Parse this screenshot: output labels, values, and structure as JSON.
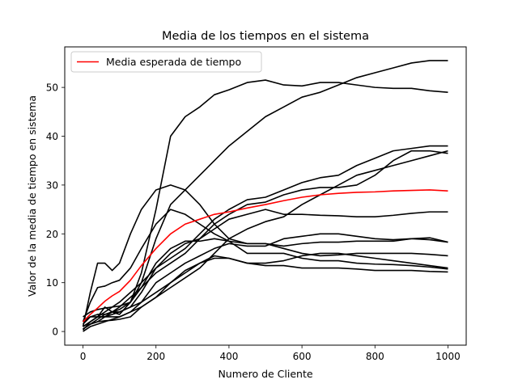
{
  "chart_data": {
    "type": "line",
    "title": "Media de los tiempos en el sistema",
    "xlabel": "Numero de Cliente",
    "ylabel": "Valor de la media de tiempo en sistema",
    "xlim": [
      -50,
      1050
    ],
    "ylim": [
      -2.8,
      58.3
    ],
    "xticks": [
      0,
      200,
      400,
      600,
      800,
      1000
    ],
    "yticks": [
      0,
      10,
      20,
      30,
      40,
      50
    ],
    "grid": false,
    "legend": {
      "position": "upper-left",
      "entries": [
        "Media esperada de tiempo"
      ]
    },
    "colors": {
      "expected": "#ff0000",
      "simulation": "#000000"
    },
    "series": [
      {
        "name": "Media esperada de tiempo",
        "color": "#ff0000",
        "x": [
          0,
          20,
          40,
          60,
          80,
          100,
          130,
          160,
          200,
          240,
          280,
          320,
          360,
          400,
          450,
          500,
          550,
          600,
          650,
          700,
          750,
          800,
          850,
          900,
          950,
          1000
        ],
        "y": [
          2,
          3.5,
          4.8,
          6.2,
          7.3,
          8.2,
          10.5,
          13.5,
          17,
          20,
          22,
          23,
          24,
          24.5,
          25.3,
          26,
          26.8,
          27.5,
          28,
          28.3,
          28.5,
          28.6,
          28.8,
          28.9,
          29,
          28.8
        ]
      },
      {
        "color": "#000000",
        "x": [
          0,
          20,
          40,
          60,
          80,
          100,
          130,
          160,
          200,
          240,
          280,
          320,
          360,
          400,
          450,
          500,
          550,
          600,
          650,
          700,
          750,
          800,
          850,
          900,
          950,
          1000
        ],
        "y": [
          0.3,
          2,
          3,
          5,
          4,
          3.5,
          6,
          12,
          25,
          40,
          44,
          46,
          48.5,
          49.5,
          51,
          51.5,
          50.5,
          50.3,
          51,
          51,
          50.5,
          50,
          49.8,
          49.8,
          49.3,
          49
        ]
      },
      {
        "color": "#000000",
        "x": [
          0,
          20,
          40,
          60,
          80,
          100,
          130,
          160,
          200,
          240,
          280,
          320,
          360,
          400,
          450,
          500,
          550,
          600,
          650,
          700,
          750,
          800,
          850,
          900,
          950,
          1000
        ],
        "y": [
          0.5,
          1.5,
          2.5,
          3.5,
          4,
          4.5,
          6,
          10,
          19,
          26,
          29,
          32,
          35,
          38,
          41,
          44,
          46,
          48,
          49,
          50.5,
          52,
          53,
          54,
          55,
          55.5,
          55.5
        ]
      },
      {
        "color": "#000000",
        "x": [
          0,
          20,
          40,
          60,
          80,
          100,
          130,
          160,
          200,
          240,
          280,
          320,
          360,
          400,
          450,
          500,
          550,
          600,
          650,
          700,
          750,
          800,
          850,
          900,
          950,
          1000
        ],
        "y": [
          1,
          8,
          14,
          14,
          12.5,
          14,
          20,
          25,
          29,
          30,
          29,
          26,
          22,
          19,
          18,
          18,
          17,
          16,
          15.5,
          15.7,
          16,
          16,
          16,
          16,
          15.8,
          15.5
        ]
      },
      {
        "color": "#000000",
        "x": [
          0,
          20,
          40,
          60,
          80,
          100,
          130,
          160,
          200,
          240,
          280,
          320,
          360,
          400,
          450,
          500,
          550,
          600,
          650,
          700,
          750,
          800,
          850,
          900,
          950,
          1000
        ],
        "y": [
          2,
          6,
          9,
          9.3,
          10,
          10.5,
          13,
          17,
          22,
          25,
          24,
          22,
          20,
          18.5,
          16,
          16,
          16,
          15,
          14.5,
          14.5,
          14,
          13.8,
          13.7,
          13.5,
          13.2,
          12.8
        ]
      },
      {
        "color": "#000000",
        "x": [
          0,
          20,
          40,
          60,
          80,
          100,
          130,
          160,
          200,
          240,
          280,
          320,
          360,
          400,
          450,
          500,
          550,
          600,
          650,
          700,
          750,
          800,
          850,
          900,
          950,
          1000
        ],
        "y": [
          2,
          3,
          3,
          3,
          3,
          3,
          4,
          6,
          10,
          12,
          14,
          15.5,
          17,
          18,
          17.5,
          17.5,
          19,
          19.5,
          20,
          20,
          19.5,
          19,
          18.8,
          19,
          18.8,
          18.3
        ]
      },
      {
        "color": "#000000",
        "x": [
          0,
          20,
          40,
          60,
          80,
          100,
          130,
          160,
          200,
          240,
          280,
          320,
          360,
          400,
          450,
          500,
          550,
          600,
          650,
          700,
          750,
          800,
          850,
          900,
          950,
          1000
        ],
        "y": [
          3,
          4,
          4.5,
          4.8,
          5,
          5.2,
          6,
          9,
          14,
          17,
          18.5,
          18.5,
          19,
          18.5,
          18,
          18,
          17.5,
          18,
          18.3,
          18.3,
          18.5,
          18.5,
          18.5,
          19,
          19.2,
          18.3
        ]
      },
      {
        "color": "#000000",
        "x": [
          0,
          20,
          40,
          60,
          80,
          100,
          130,
          160,
          200,
          240,
          280,
          320,
          360,
          400,
          450,
          500,
          550,
          600,
          650,
          700,
          750,
          800,
          850,
          900,
          950,
          1000
        ],
        "y": [
          1,
          2,
          3,
          3,
          3.5,
          4,
          5,
          8,
          13,
          16,
          18,
          19,
          21,
          23,
          24,
          25,
          24,
          24,
          23.8,
          23.7,
          23.5,
          23.5,
          23.8,
          24.2,
          24.5,
          24.5
        ]
      },
      {
        "color": "#000000",
        "x": [
          0,
          20,
          40,
          60,
          80,
          100,
          130,
          160,
          200,
          240,
          280,
          320,
          360,
          400,
          450,
          500,
          550,
          600,
          650,
          700,
          750,
          800,
          850,
          900,
          950,
          1000
        ],
        "y": [
          0.5,
          1.5,
          2,
          2.2,
          2.3,
          2.5,
          3,
          5,
          7,
          10,
          12,
          14,
          15,
          15,
          14,
          14,
          14.5,
          15.5,
          16,
          16,
          15.5,
          15,
          14.5,
          14,
          13.5,
          13
        ]
      },
      {
        "color": "#000000",
        "x": [
          0,
          20,
          40,
          60,
          80,
          100,
          130,
          160,
          200,
          240,
          280,
          320,
          360,
          400,
          450,
          500,
          550,
          600,
          650,
          700,
          750,
          800,
          850,
          900,
          950,
          1000
        ],
        "y": [
          1.5,
          3,
          3.5,
          3.5,
          4,
          4,
          5,
          6,
          8,
          10,
          12.5,
          14,
          15.5,
          15,
          14,
          13.5,
          13.5,
          13,
          13,
          13,
          12.8,
          12.5,
          12.5,
          12.5,
          12.3,
          12.2
        ]
      },
      {
        "color": "#000000",
        "x": [
          0,
          20,
          40,
          60,
          80,
          100,
          130,
          160,
          200,
          240,
          280,
          320,
          360,
          400,
          450,
          500,
          550,
          600,
          650,
          700,
          750,
          800,
          850,
          900,
          950,
          1000
        ],
        "y": [
          1,
          2,
          3,
          4,
          5,
          6,
          8,
          10,
          13,
          15,
          17,
          20,
          23,
          25,
          27,
          27.5,
          29,
          30.5,
          31.5,
          32,
          34,
          35.5,
          37,
          37.5,
          38,
          38
        ]
      },
      {
        "color": "#000000",
        "x": [
          0,
          20,
          40,
          60,
          80,
          100,
          130,
          160,
          200,
          240,
          280,
          320,
          360,
          400,
          450,
          500,
          550,
          600,
          650,
          700,
          750,
          800,
          850,
          900,
          950,
          1000
        ],
        "y": [
          0.5,
          1.5,
          2,
          3,
          4,
          5,
          7,
          9,
          12,
          14,
          16,
          19,
          22,
          24,
          26,
          26.5,
          28,
          29,
          29.5,
          29.5,
          30,
          32,
          35,
          37,
          37,
          36.5
        ]
      },
      {
        "color": "#000000",
        "x": [
          0,
          20,
          40,
          60,
          80,
          100,
          130,
          160,
          200,
          240,
          280,
          320,
          360,
          400,
          450,
          500,
          550,
          600,
          650,
          700,
          750,
          800,
          850,
          900,
          950,
          1000
        ],
        "y": [
          0,
          1,
          1.5,
          2,
          2.5,
          3,
          4,
          5,
          7,
          9,
          11,
          13,
          16,
          19,
          21,
          22.5,
          23.5,
          26,
          28,
          30,
          32,
          33,
          34,
          35,
          36,
          37
        ]
      }
    ]
  }
}
